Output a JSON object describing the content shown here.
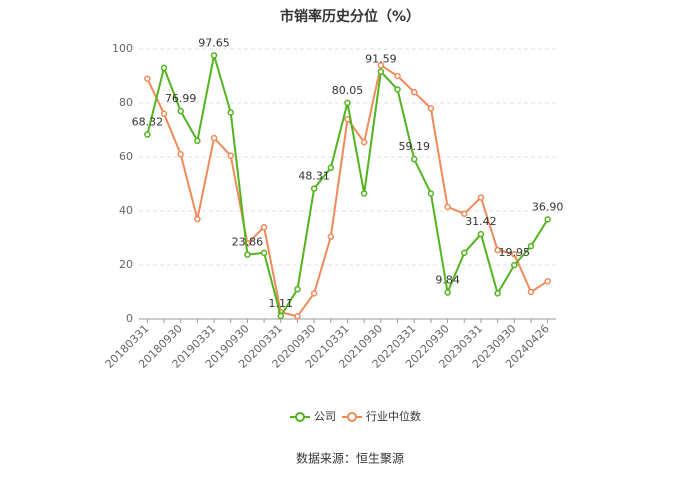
{
  "chart_data": {
    "type": "line",
    "title": "市销率历史分位（%）",
    "source": "数据来源：恒生聚源",
    "categories": [
      "20180331",
      null,
      "20180930",
      null,
      "20190331",
      null,
      "20190930",
      null,
      "20200331",
      null,
      "20200930",
      null,
      "20210331",
      null,
      "20210930",
      null,
      "20220331",
      null,
      "20220930",
      null,
      "20230331",
      null,
      "20230930",
      null,
      "20240426"
    ],
    "series": [
      {
        "name": "公司",
        "color": "#52b41e",
        "values": [
          68.32,
          93,
          76.99,
          66,
          97.65,
          76.5,
          23.86,
          24.5,
          1.11,
          11,
          48.31,
          56,
          80.05,
          46.5,
          91.59,
          85,
          59.19,
          46.5,
          9.84,
          24.5,
          31.42,
          9.5,
          19.95,
          27,
          36.9
        ],
        "value_labels": [
          "68.32",
          null,
          "76.99",
          null,
          "97.65",
          null,
          "23.86",
          null,
          "1.11",
          null,
          "48.31",
          null,
          "80.05",
          null,
          "91.59",
          null,
          "59.19",
          null,
          "9.84",
          null,
          "31.42",
          null,
          "19.95",
          null,
          "36.90"
        ]
      },
      {
        "name": "行业中位数",
        "color": "#f08a5a",
        "values": [
          89,
          76,
          61,
          37,
          67,
          60.5,
          28,
          34,
          2.5,
          1,
          9.5,
          30.5,
          74,
          65.5,
          94,
          90,
          84,
          78,
          41.5,
          39,
          45,
          25.5,
          24,
          10,
          14
        ]
      }
    ],
    "ylim": [
      0,
      100
    ],
    "yticks": [
      0,
      20,
      40,
      60,
      80,
      100
    ],
    "grid": true
  }
}
